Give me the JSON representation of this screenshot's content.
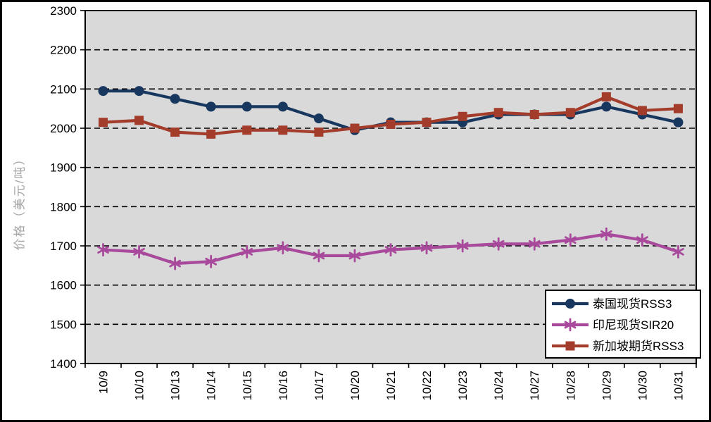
{
  "frame": {
    "background": "#ffffff",
    "border_color": "#000000"
  },
  "chart_data": {
    "type": "line",
    "title": "",
    "xlabel": "",
    "ylabel": "价格（美元/吨）",
    "ylabel_color": "#a6a6a6",
    "plot_background": "#d9d9d9",
    "axis_color": "#000000",
    "grid": "horizontal-dashed-black",
    "legend_position": "inside-bottom-right",
    "ylim": [
      1400,
      2300
    ],
    "ytick_step": 100,
    "yticks": [
      1400,
      1500,
      1600,
      1700,
      1800,
      1900,
      2000,
      2100,
      2200,
      2300
    ],
    "categories": [
      "10/9",
      "10/10",
      "10/13",
      "10/14",
      "10/15",
      "10/16",
      "10/17",
      "10/20",
      "10/21",
      "10/22",
      "10/23",
      "10/24",
      "10/27",
      "10/28",
      "10/29",
      "10/30",
      "10/31"
    ],
    "series": [
      {
        "name": "泰国现货RSS3",
        "color": "#17375e",
        "marker": "circle",
        "values": [
          2095,
          2095,
          2075,
          2055,
          2055,
          2055,
          2025,
          1995,
          2015,
          2015,
          2015,
          2035,
          2035,
          2035,
          2055,
          2035,
          2015
        ]
      },
      {
        "name": "印尼现货SIR20",
        "color": "#a8499c",
        "marker": "asterisk",
        "values": [
          1690,
          1685,
          1655,
          1660,
          1685,
          1695,
          1675,
          1675,
          1690,
          1695,
          1700,
          1705,
          1705,
          1715,
          1730,
          1715,
          1685
        ]
      },
      {
        "name": "新加坡期货RSS3",
        "color": "#a33c2b",
        "marker": "square",
        "values": [
          2015,
          2020,
          1990,
          1985,
          1995,
          1995,
          1990,
          2000,
          2010,
          2015,
          2030,
          2040,
          2035,
          2040,
          2080,
          2045,
          2050
        ]
      }
    ]
  }
}
